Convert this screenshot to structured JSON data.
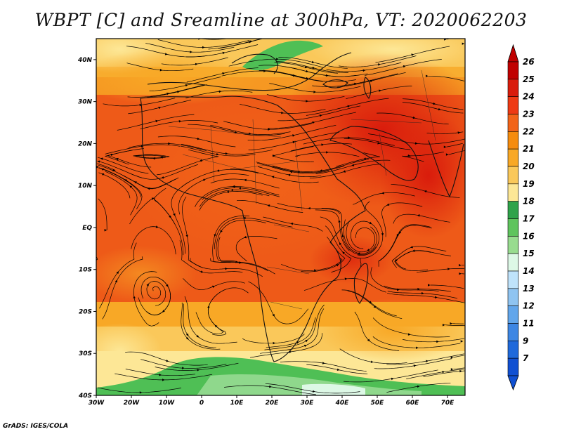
{
  "title": "WBPT [C] and Sreamline at 300hPa, VT: 2020062203",
  "credit": "GrADS: IGES/COLA",
  "map": {
    "lat_ticks": [
      "40N",
      "30N",
      "20N",
      "10N",
      "EQ",
      "10S",
      "20S",
      "30S",
      "40S"
    ],
    "lon_ticks": [
      "30W",
      "20W",
      "10W",
      "0",
      "10E",
      "20E",
      "30E",
      "40E",
      "50E",
      "60E",
      "70E"
    ],
    "lat_range": [
      -40,
      45
    ],
    "lon_range": [
      -30,
      75
    ]
  },
  "colorbar": {
    "labels": [
      "26",
      "25",
      "24",
      "23",
      "22",
      "21",
      "20",
      "19",
      "18",
      "17",
      "16",
      "15",
      "14",
      "13",
      "12",
      "11",
      "9",
      "7"
    ],
    "colors": [
      "#c00000",
      "#d91c0c",
      "#ee3a14",
      "#f26419",
      "#f58c0e",
      "#f8a826",
      "#fac85a",
      "#fde796",
      "#2fa34a",
      "#5fc45d",
      "#98dc8f",
      "#ddf8e6",
      "#bfe3fb",
      "#8fc4f1",
      "#62a6eb",
      "#3d86e3",
      "#1f69db",
      "#1050d2"
    ]
  }
}
